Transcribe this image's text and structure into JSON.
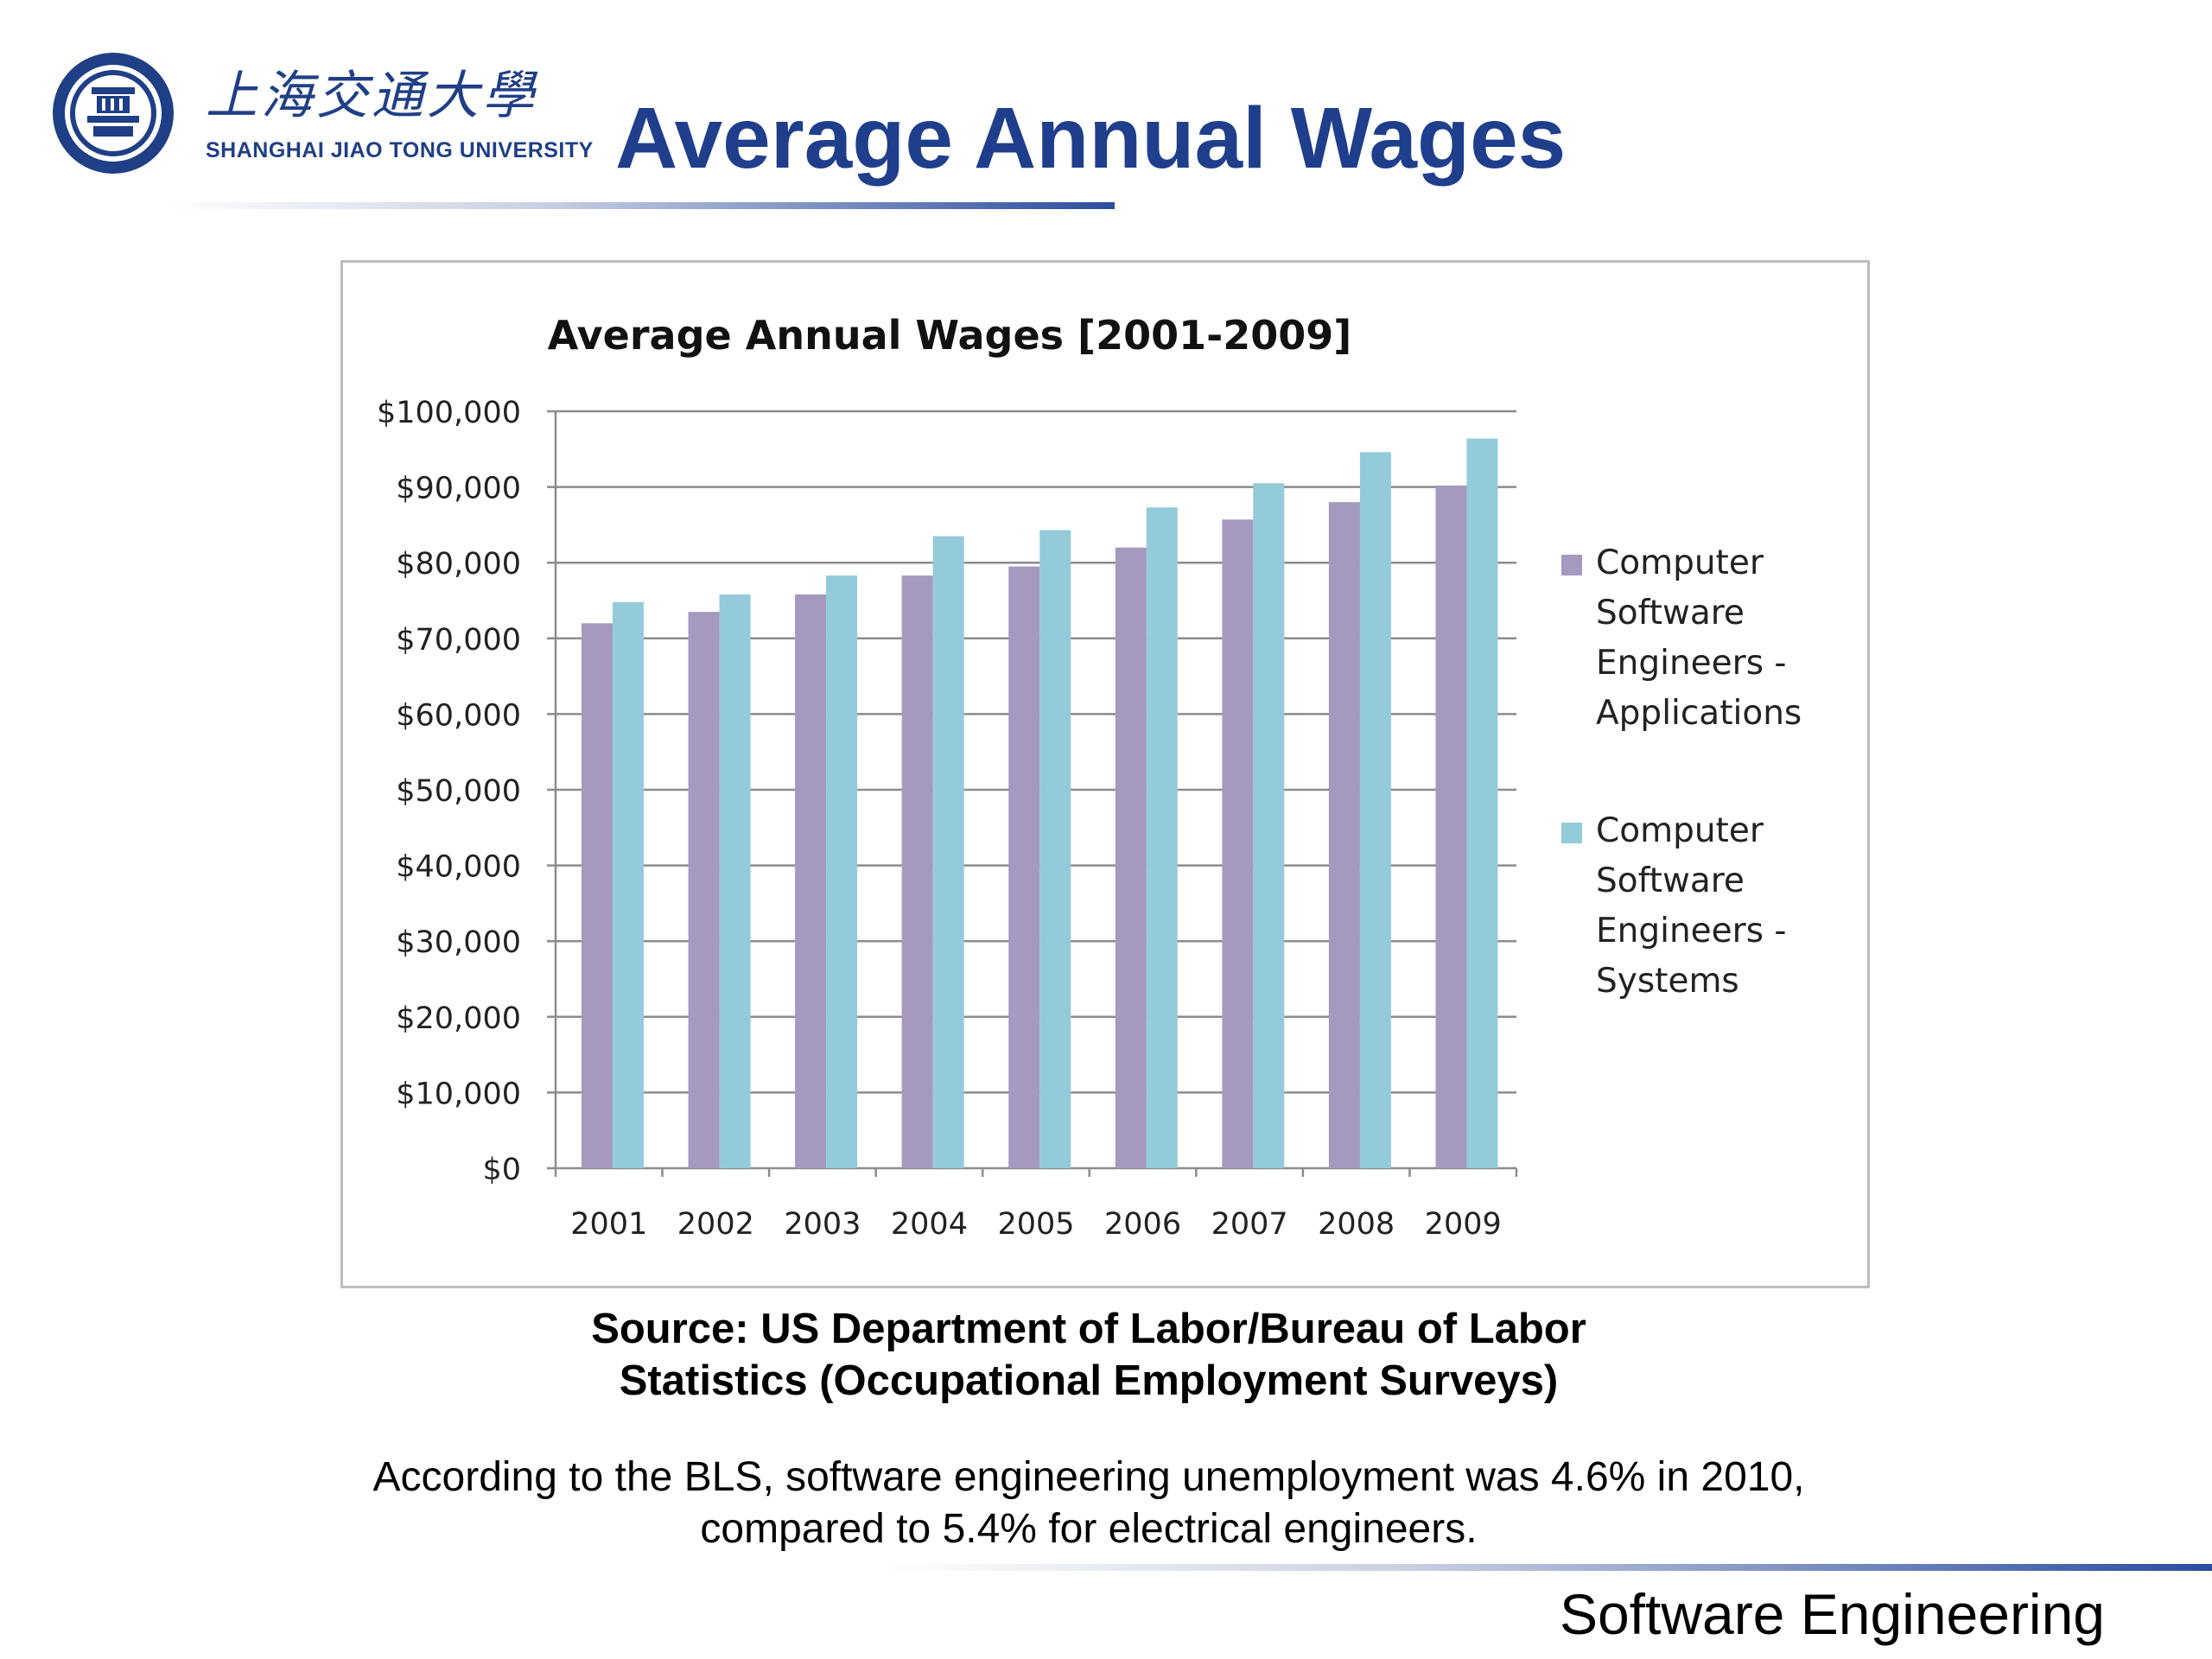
{
  "header": {
    "logo_icon": "university-seal-icon",
    "university_cn": "上海交通大學",
    "university_en": "SHANGHAI JIAO TONG UNIVERSITY",
    "slide_title": "Average Annual Wages"
  },
  "chart_data": {
    "type": "bar",
    "title": "Average Annual Wages [2001-2009]",
    "xlabel": "",
    "ylabel": "",
    "categories": [
      "2001",
      "2002",
      "2003",
      "2004",
      "2005",
      "2006",
      "2007",
      "2008",
      "2009"
    ],
    "series": [
      {
        "name": "Computer Software Engineers - Applications",
        "legend_lines": [
          "Computer",
          "Software",
          "Engineers -",
          "Applications"
        ],
        "color": "#A599BF",
        "values": [
          72000,
          73500,
          75800,
          78300,
          79500,
          82000,
          85700,
          88000,
          90200
        ]
      },
      {
        "name": "Computer Software Engineers - Systems",
        "legend_lines": [
          "Computer",
          "Software",
          "Engineers -",
          "Systems"
        ],
        "color": "#93CBDA",
        "values": [
          74800,
          75800,
          78300,
          83500,
          84300,
          87300,
          90500,
          94600,
          96400
        ]
      }
    ],
    "ylim": [
      0,
      100000
    ],
    "yticks": [
      0,
      10000,
      20000,
      30000,
      40000,
      50000,
      60000,
      70000,
      80000,
      90000,
      100000
    ],
    "ytick_labels": [
      "$0",
      "$10,000",
      "$20,000",
      "$30,000",
      "$40,000",
      "$50,000",
      "$60,000",
      "$70,000",
      "$80,000",
      "$90,000",
      "$100,000"
    ],
    "grid": true,
    "legend_position": "right"
  },
  "source": {
    "line1": "Source: US Department of Labor/Bureau of Labor",
    "line2": "Statistics (Occupational Employment Surveys)"
  },
  "note": {
    "line1": "According to the BLS, software engineering unemployment was 4.6% in 2010,",
    "line2": "compared to 5.4% for electrical engineers."
  },
  "footer": {
    "course": "Software Engineering"
  },
  "colors": {
    "title_blue": "#1f3f8c",
    "rule_blue": "#2b4da0"
  }
}
